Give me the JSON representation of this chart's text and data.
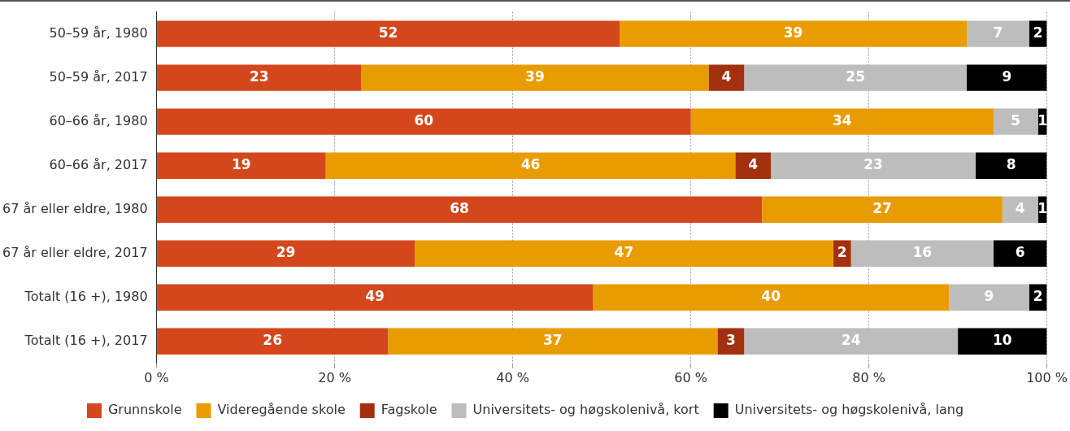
{
  "chart_data": {
    "type": "bar",
    "orientation": "horizontal",
    "stacked": true,
    "data_labels": true,
    "grid": "x",
    "legend": "bottom",
    "categories": [
      "50–59 år, 1980",
      "50–59 år, 2017",
      "60–66 år, 1980",
      "60–66 år, 2017",
      "67 år eller eldre, 1980",
      "67 år eller eldre, 2017",
      "Totalt (16 +), 1980",
      "Totalt (16 +), 2017"
    ],
    "xlim": [
      0,
      100
    ],
    "xticks": [
      {
        "value": 0,
        "label": "0 %"
      },
      {
        "value": 20,
        "label": "20 %"
      },
      {
        "value": 40,
        "label": "40 %"
      },
      {
        "value": 60,
        "label": "60 %"
      },
      {
        "value": 80,
        "label": "80 %"
      },
      {
        "value": 100,
        "label": "100 %"
      }
    ],
    "series": [
      {
        "name": "Grunnskole",
        "color": "#d4471c",
        "values": [
          52,
          23,
          60,
          19,
          68,
          29,
          49,
          26
        ]
      },
      {
        "name": "Videregående skole",
        "color": "#e89c00",
        "values": [
          39,
          39,
          34,
          46,
          27,
          47,
          40,
          37
        ]
      },
      {
        "name": "Fagskole",
        "color": "#a3300e",
        "values": [
          null,
          4,
          null,
          4,
          null,
          2,
          null,
          3
        ]
      },
      {
        "name": "Universitets- og høgskolenivå, kort",
        "color": "#bdbdbd",
        "values": [
          7,
          25,
          5,
          23,
          4,
          16,
          9,
          24
        ]
      },
      {
        "name": "Universitets- og høgskolenivå, lang",
        "color": "#000000",
        "values": [
          2,
          9,
          1,
          8,
          1,
          6,
          2,
          10
        ]
      }
    ]
  }
}
